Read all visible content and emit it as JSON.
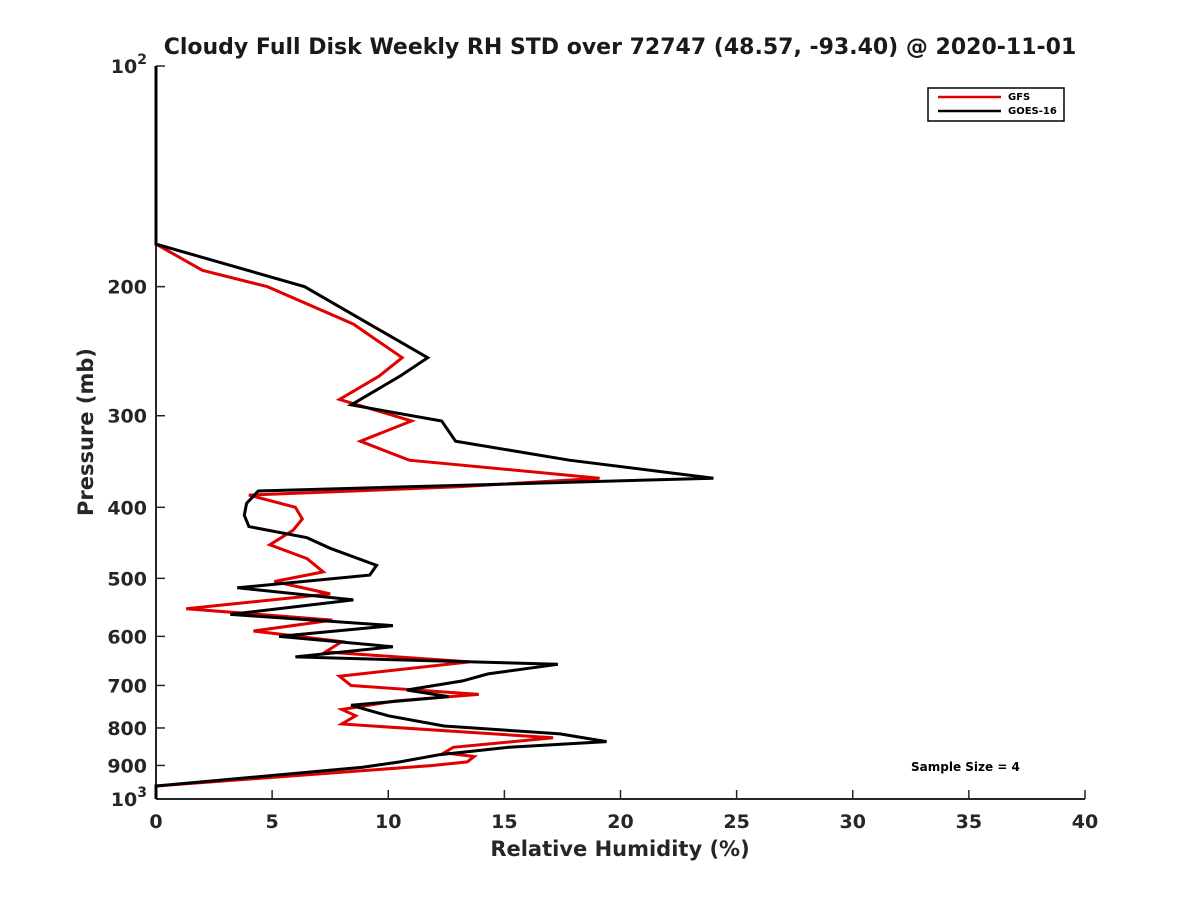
{
  "chart_data": {
    "type": "line",
    "title": "Cloudy Full Disk Weekly RH STD over 72747 (48.57, -93.40) @ 2020-11-01",
    "xlabel": "Relative Humidity (%)",
    "ylabel": "Pressure (mb)",
    "xlim": [
      0,
      40
    ],
    "ylim": [
      1000,
      100
    ],
    "yscale": "log",
    "x_ticks": [
      0,
      5,
      10,
      15,
      20,
      25,
      30,
      35,
      40
    ],
    "x_tick_labels": [
      "0",
      "5",
      "10",
      "15",
      "20",
      "25",
      "30",
      "35",
      "40"
    ],
    "y_ticks": [
      100,
      200,
      300,
      400,
      500,
      600,
      700,
      800,
      900,
      1000
    ],
    "y_tick_labels": [
      {
        "base": "10",
        "exp": "2"
      },
      {
        "base": "200",
        "exp": ""
      },
      {
        "base": "300",
        "exp": ""
      },
      {
        "base": "400",
        "exp": ""
      },
      {
        "base": "500",
        "exp": ""
      },
      {
        "base": "600",
        "exp": ""
      },
      {
        "base": "700",
        "exp": ""
      },
      {
        "base": "800",
        "exp": ""
      },
      {
        "base": "900",
        "exp": ""
      },
      {
        "base": "10",
        "exp": "3"
      }
    ],
    "legend_position": "top-right",
    "annotation": "Sample Size = 4",
    "series": [
      {
        "name": "GFS",
        "color": "#e00000",
        "points": [
          [
            0,
            100
          ],
          [
            0,
            150
          ],
          [
            0,
            175
          ],
          [
            2,
            190
          ],
          [
            4.8,
            200
          ],
          [
            8.5,
            225
          ],
          [
            10.6,
            250
          ],
          [
            9.6,
            265
          ],
          [
            7.9,
            285
          ],
          [
            11,
            305
          ],
          [
            8.8,
            325
          ],
          [
            10.9,
            345
          ],
          [
            19.1,
            365
          ],
          [
            13,
            375
          ],
          [
            4,
            385
          ],
          [
            6,
            400
          ],
          [
            6.3,
            415
          ],
          [
            5.9,
            430
          ],
          [
            4.9,
            450
          ],
          [
            6.5,
            470
          ],
          [
            7.2,
            490
          ],
          [
            5.1,
            505
          ],
          [
            7.5,
            525
          ],
          [
            1.3,
            550
          ],
          [
            7.6,
            570
          ],
          [
            4.2,
            590
          ],
          [
            8,
            610
          ],
          [
            7.3,
            630
          ],
          [
            13.5,
            650
          ],
          [
            7.9,
            680
          ],
          [
            8.4,
            700
          ],
          [
            13.9,
            720
          ],
          [
            10.3,
            735
          ],
          [
            8,
            755
          ],
          [
            8.6,
            770
          ],
          [
            8,
            790
          ],
          [
            17.1,
            825
          ],
          [
            12.8,
            850
          ],
          [
            12.4,
            865
          ],
          [
            13.7,
            875
          ],
          [
            13.4,
            890
          ],
          [
            11.9,
            900
          ],
          [
            0,
            960
          ],
          [
            0,
            1000
          ]
        ]
      },
      {
        "name": "GOES-16",
        "color": "#000000",
        "points": [
          [
            0,
            100
          ],
          [
            0,
            150
          ],
          [
            0,
            175
          ],
          [
            6.4,
            200
          ],
          [
            11.7,
            250
          ],
          [
            10.5,
            265
          ],
          [
            8.4,
            290
          ],
          [
            12.3,
            305
          ],
          [
            12.9,
            325
          ],
          [
            17.8,
            345
          ],
          [
            24,
            365
          ],
          [
            4.4,
            380
          ],
          [
            3.9,
            395
          ],
          [
            3.8,
            410
          ],
          [
            4,
            425
          ],
          [
            6.5,
            440
          ],
          [
            7.5,
            455
          ],
          [
            9.5,
            480
          ],
          [
            9.2,
            495
          ],
          [
            3.5,
            515
          ],
          [
            8.5,
            535
          ],
          [
            3.2,
            560
          ],
          [
            10.2,
            580
          ],
          [
            5.3,
            600
          ],
          [
            10.2,
            620
          ],
          [
            6,
            640
          ],
          [
            17.3,
            655
          ],
          [
            14.3,
            675
          ],
          [
            13.2,
            690
          ],
          [
            10.8,
            710
          ],
          [
            12.6,
            725
          ],
          [
            8.4,
            745
          ],
          [
            10,
            770
          ],
          [
            12.4,
            795
          ],
          [
            17.4,
            815
          ],
          [
            19.4,
            835
          ],
          [
            15.2,
            850
          ],
          [
            12.2,
            870
          ],
          [
            10.5,
            890
          ],
          [
            8.9,
            905
          ],
          [
            0,
            960
          ],
          [
            0,
            1000
          ]
        ]
      }
    ]
  }
}
